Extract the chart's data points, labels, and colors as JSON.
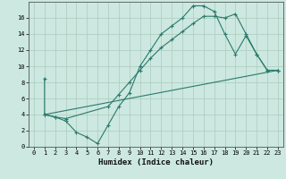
{
  "xlabel": "Humidex (Indice chaleur)",
  "bg_color": "#cce8e0",
  "grid_color": "#aaccbb",
  "line_color": "#2a7a6a",
  "xlim": [
    -0.5,
    23.5
  ],
  "ylim": [
    0,
    18
  ],
  "xticks": [
    0,
    1,
    2,
    3,
    4,
    5,
    6,
    7,
    8,
    9,
    10,
    11,
    12,
    13,
    14,
    15,
    16,
    17,
    18,
    19,
    20,
    21,
    22,
    23
  ],
  "yticks": [
    0,
    2,
    4,
    6,
    8,
    10,
    12,
    14,
    16
  ],
  "line1_x": [
    1,
    1,
    2,
    3,
    4,
    5,
    6,
    7,
    8,
    9,
    10,
    11,
    12,
    13,
    14,
    15,
    16,
    17,
    18,
    19,
    20,
    21,
    22,
    23
  ],
  "line1_y": [
    8.5,
    4.0,
    3.7,
    3.2,
    1.8,
    1.2,
    0.4,
    2.7,
    5.0,
    6.7,
    10.0,
    12.0,
    14.0,
    15.0,
    16.0,
    17.5,
    17.5,
    16.8,
    14.0,
    11.5,
    13.8,
    11.5,
    9.5,
    9.5
  ],
  "line2_x": [
    1,
    2,
    3,
    7,
    8,
    9,
    10,
    11,
    12,
    13,
    14,
    15,
    16,
    17,
    18,
    19,
    20,
    21,
    22,
    23
  ],
  "line2_y": [
    4.0,
    3.7,
    3.5,
    5.0,
    6.5,
    8.0,
    9.5,
    11.0,
    12.3,
    13.3,
    14.3,
    15.3,
    16.2,
    16.2,
    16.0,
    16.5,
    14.0,
    11.5,
    9.5,
    9.5
  ],
  "line3_x": [
    1,
    23
  ],
  "line3_y": [
    4.0,
    9.5
  ]
}
